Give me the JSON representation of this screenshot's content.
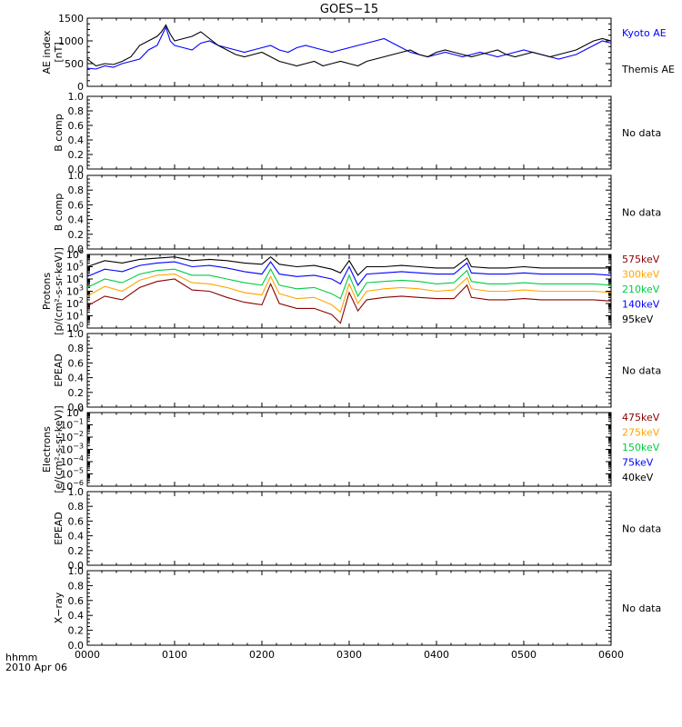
{
  "title": "GOES−15",
  "x_axis": {
    "ticks": [
      0,
      1,
      2,
      3,
      4,
      5,
      6
    ],
    "tick_labels": [
      "0000",
      "0100",
      "0200",
      "0300",
      "0400",
      "0500",
      "0600"
    ],
    "unit_label": "hhmm",
    "date_label": "2010 Apr 06"
  },
  "panels": [
    {
      "id": "ae",
      "ylabel": [
        "AE index",
        "[nT]"
      ],
      "ymax": 1500,
      "yticks": [
        0,
        500,
        1000,
        1500
      ],
      "ytick_labels": [
        "0",
        "500",
        "1000",
        "1500"
      ],
      "right_labels": [
        {
          "text": "Kyoto AE",
          "color": "#0000ff"
        },
        {
          "text": "Themis AE",
          "color": "#000000"
        }
      ]
    },
    {
      "id": "bcomp1",
      "ylabel": [
        "B comp"
      ],
      "ymax": 1.0,
      "yticks": [
        0,
        0.2,
        0.4,
        0.6,
        0.8,
        1.0
      ],
      "ytick_labels": [
        "0.0",
        "0.2",
        "0.4",
        "0.6",
        "0.8",
        "1.0"
      ],
      "right_labels": [
        {
          "text": "No data",
          "color": "#000000"
        }
      ]
    },
    {
      "id": "bcomp2",
      "ylabel": [
        "B comp"
      ],
      "ymax": 1.0,
      "yticks": [
        0,
        0.2,
        0.4,
        0.6,
        0.8,
        1.0
      ],
      "ytick_labels": [
        "0.0",
        "0.2",
        "0.4",
        "0.6",
        "0.8",
        "1.0"
      ],
      "right_labels": [
        {
          "text": "No data",
          "color": "#000000"
        }
      ]
    },
    {
      "id": "protons",
      "ylabel": [
        "Protons",
        "[p/(cm²-s-sr-keV)]"
      ],
      "log": true,
      "yrange_exp": [
        0,
        6
      ],
      "ytick_exps": [
        0,
        1,
        2,
        3,
        4,
        5,
        6
      ],
      "right_labels": [
        {
          "text": "575keV",
          "color": "#8b0000"
        },
        {
          "text": "300keV",
          "color": "#ffa500"
        },
        {
          "text": "210keV",
          "color": "#00cc44"
        },
        {
          "text": "140keV",
          "color": "#0000ff"
        },
        {
          "text": "95keV",
          "color": "#000000"
        }
      ]
    },
    {
      "id": "epead1",
      "ylabel": [
        "EPEAD"
      ],
      "ymax": 1.0,
      "yticks": [
        0,
        0.2,
        0.4,
        0.6,
        0.8,
        1.0
      ],
      "ytick_labels": [
        "0.0",
        "0.2",
        "0.4",
        "0.6",
        "0.8",
        "1.0"
      ],
      "right_labels": [
        {
          "text": "No data",
          "color": "#000000"
        }
      ]
    },
    {
      "id": "electrons",
      "ylabel": [
        "Electrons",
        "[e/(cm²-s-sr-keV)]"
      ],
      "log": true,
      "yrange_exp": [
        -6,
        0
      ],
      "ytick_exps": [
        -6,
        -5,
        -4,
        -3,
        -2,
        -1,
        0
      ],
      "right_labels": [
        {
          "text": "475keV",
          "color": "#8b0000"
        },
        {
          "text": "275keV",
          "color": "#ffa500"
        },
        {
          "text": "150keV",
          "color": "#00cc44"
        },
        {
          "text": "75keV",
          "color": "#0000ff"
        },
        {
          "text": "40keV",
          "color": "#000000"
        }
      ]
    },
    {
      "id": "epead2",
      "ylabel": [
        "EPEAD"
      ],
      "ymax": 1.0,
      "yticks": [
        0,
        0.2,
        0.4,
        0.6,
        0.8,
        1.0
      ],
      "ytick_labels": [
        "0.0",
        "0.2",
        "0.4",
        "0.6",
        "0.8",
        "1.0"
      ],
      "right_labels": [
        {
          "text": "No data",
          "color": "#000000"
        }
      ]
    },
    {
      "id": "xray",
      "ylabel": [
        "X−ray"
      ],
      "ymax": 1.0,
      "yticks": [
        0,
        0.2,
        0.4,
        0.6,
        0.8,
        1.0
      ],
      "ytick_labels": [
        "0.0",
        "0.2",
        "0.4",
        "0.6",
        "0.8",
        "1.0"
      ],
      "right_labels": [
        {
          "text": "No data",
          "color": "#000000"
        }
      ]
    }
  ],
  "chart_data": {
    "type": "line",
    "title": "GOES−15",
    "x_unit": "hours after 2010 Apr 06 00:00 UT",
    "ae_series": [
      {
        "name": "Kyoto AE",
        "color": "#0000ff",
        "x": [
          0,
          0.1,
          0.2,
          0.3,
          0.4,
          0.5,
          0.6,
          0.7,
          0.8,
          0.85,
          0.9,
          0.95,
          1.0,
          1.1,
          1.2,
          1.3,
          1.4,
          1.5,
          1.6,
          1.7,
          1.8,
          1.9,
          2.0,
          2.1,
          2.2,
          2.3,
          2.4,
          2.5,
          2.6,
          2.7,
          2.8,
          2.9,
          3.0,
          3.1,
          3.2,
          3.3,
          3.4,
          3.5,
          3.6,
          3.7,
          3.8,
          3.9,
          4.0,
          4.1,
          4.2,
          4.3,
          4.4,
          4.5,
          4.6,
          4.7,
          4.8,
          4.9,
          5.0,
          5.1,
          5.2,
          5.3,
          5.4,
          5.5,
          5.6,
          5.7,
          5.8,
          5.9,
          6.0
        ],
        "y": [
          400,
          380,
          450,
          420,
          500,
          550,
          600,
          800,
          900,
          1100,
          1300,
          1000,
          900,
          850,
          800,
          950,
          1000,
          900,
          850,
          800,
          750,
          800,
          850,
          900,
          800,
          750,
          850,
          900,
          850,
          800,
          750,
          800,
          850,
          900,
          950,
          1000,
          1050,
          950,
          850,
          750,
          700,
          650,
          700,
          750,
          700,
          650,
          700,
          750,
          700,
          650,
          700,
          750,
          800,
          750,
          700,
          650,
          600,
          650,
          700,
          800,
          900,
          1000,
          950
        ]
      },
      {
        "name": "Themis AE",
        "color": "#000000",
        "x": [
          0,
          0.1,
          0.2,
          0.3,
          0.4,
          0.5,
          0.6,
          0.7,
          0.8,
          0.85,
          0.9,
          0.95,
          1.0,
          1.1,
          1.2,
          1.3,
          1.4,
          1.5,
          1.6,
          1.7,
          1.8,
          1.9,
          2.0,
          2.1,
          2.2,
          2.3,
          2.4,
          2.5,
          2.6,
          2.7,
          2.8,
          2.9,
          3.0,
          3.1,
          3.2,
          3.3,
          3.4,
          3.5,
          3.6,
          3.7,
          3.8,
          3.9,
          4.0,
          4.1,
          4.2,
          4.3,
          4.4,
          4.5,
          4.6,
          4.7,
          4.8,
          4.9,
          5.0,
          5.1,
          5.2,
          5.3,
          5.4,
          5.5,
          5.6,
          5.7,
          5.8,
          5.9,
          6.0
        ],
        "y": [
          600,
          450,
          500,
          480,
          550,
          650,
          900,
          1000,
          1100,
          1200,
          1350,
          1150,
          1000,
          1050,
          1100,
          1200,
          1050,
          900,
          800,
          700,
          650,
          700,
          750,
          650,
          550,
          500,
          450,
          500,
          550,
          450,
          500,
          550,
          500,
          450,
          550,
          600,
          650,
          700,
          750,
          800,
          700,
          650,
          750,
          800,
          750,
          700,
          650,
          700,
          750,
          800,
          700,
          650,
          700,
          750,
          700,
          650,
          700,
          750,
          800,
          900,
          1000,
          1050,
          1000
        ]
      }
    ],
    "proton_series": [
      {
        "name": "95keV",
        "color": "#000000",
        "x": [
          0,
          0.2,
          0.4,
          0.6,
          0.8,
          1.0,
          1.2,
          1.4,
          1.6,
          1.8,
          2.0,
          2.1,
          2.2,
          2.4,
          2.6,
          2.8,
          2.9,
          3.0,
          3.1,
          3.2,
          3.4,
          3.6,
          3.8,
          4.0,
          4.2,
          4.35,
          4.4,
          4.6,
          4.8,
          5.0,
          5.2,
          5.4,
          5.6,
          5.8,
          6.0
        ],
        "y_log10": [
          5.0,
          5.5,
          5.3,
          5.6,
          5.7,
          5.8,
          5.5,
          5.6,
          5.5,
          5.3,
          5.2,
          5.8,
          5.2,
          5.0,
          5.1,
          4.8,
          4.5,
          5.5,
          4.3,
          5.0,
          5.0,
          5.1,
          5.0,
          4.9,
          4.9,
          5.7,
          5.0,
          4.9,
          4.9,
          5.0,
          4.9,
          4.9,
          4.9,
          4.9,
          4.9
        ]
      },
      {
        "name": "140keV",
        "color": "#0000ff",
        "x": [
          0,
          0.2,
          0.4,
          0.6,
          0.8,
          1.0,
          1.2,
          1.4,
          1.6,
          1.8,
          2.0,
          2.1,
          2.2,
          2.4,
          2.6,
          2.8,
          2.9,
          3.0,
          3.1,
          3.2,
          3.4,
          3.6,
          3.8,
          4.0,
          4.2,
          4.35,
          4.4,
          4.6,
          4.8,
          5.0,
          5.2,
          5.4,
          5.6,
          5.8,
          6.0
        ],
        "y_log10": [
          4.2,
          4.8,
          4.6,
          5.1,
          5.3,
          5.4,
          5.0,
          5.1,
          4.9,
          4.6,
          4.4,
          5.4,
          4.4,
          4.2,
          4.3,
          4.0,
          3.6,
          5.0,
          3.5,
          4.4,
          4.5,
          4.6,
          4.5,
          4.4,
          4.4,
          5.3,
          4.5,
          4.4,
          4.4,
          4.5,
          4.4,
          4.4,
          4.4,
          4.4,
          4.3
        ]
      },
      {
        "name": "210keV",
        "color": "#00cc44",
        "x": [
          0,
          0.2,
          0.4,
          0.6,
          0.8,
          1.0,
          1.2,
          1.4,
          1.6,
          1.8,
          2.0,
          2.1,
          2.2,
          2.4,
          2.6,
          2.8,
          2.9,
          3.0,
          3.1,
          3.2,
          3.4,
          3.6,
          3.8,
          4.0,
          4.2,
          4.35,
          4.4,
          4.6,
          4.8,
          5.0,
          5.2,
          5.4,
          5.6,
          5.8,
          6.0
        ],
        "y_log10": [
          3.3,
          4.0,
          3.7,
          4.4,
          4.7,
          4.8,
          4.3,
          4.3,
          4.0,
          3.7,
          3.5,
          4.8,
          3.5,
          3.2,
          3.3,
          2.8,
          2.4,
          4.3,
          2.6,
          3.7,
          3.8,
          3.9,
          3.8,
          3.6,
          3.7,
          4.7,
          3.8,
          3.6,
          3.6,
          3.7,
          3.6,
          3.6,
          3.6,
          3.6,
          3.5
        ]
      },
      {
        "name": "300keV",
        "color": "#ffa500",
        "x": [
          0,
          0.2,
          0.4,
          0.6,
          0.8,
          1.0,
          1.2,
          1.4,
          1.6,
          1.8,
          2.0,
          2.1,
          2.2,
          2.4,
          2.6,
          2.8,
          2.9,
          3.0,
          3.1,
          3.2,
          3.4,
          3.6,
          3.8,
          4.0,
          4.2,
          4.35,
          4.4,
          4.6,
          4.8,
          5.0,
          5.2,
          5.4,
          5.6,
          5.8,
          6.0
        ],
        "y_log10": [
          2.6,
          3.4,
          3.0,
          3.9,
          4.3,
          4.4,
          3.7,
          3.6,
          3.3,
          2.9,
          2.7,
          4.2,
          2.8,
          2.4,
          2.5,
          1.9,
          1.3,
          3.6,
          2.0,
          3.0,
          3.2,
          3.3,
          3.2,
          3.0,
          3.1,
          4.1,
          3.2,
          3.0,
          3.0,
          3.1,
          3.0,
          3.0,
          3.0,
          3.0,
          2.9
        ]
      },
      {
        "name": "575keV",
        "color": "#8b0000",
        "x": [
          0,
          0.2,
          0.4,
          0.6,
          0.8,
          1.0,
          1.2,
          1.4,
          1.6,
          1.8,
          2.0,
          2.1,
          2.2,
          2.4,
          2.6,
          2.8,
          2.9,
          3.0,
          3.1,
          3.2,
          3.4,
          3.6,
          3.8,
          4.0,
          4.2,
          4.35,
          4.4,
          4.6,
          4.8,
          5.0,
          5.2,
          5.4,
          5.6,
          5.8,
          6.0
        ],
        "y_log10": [
          1.8,
          2.6,
          2.3,
          3.3,
          3.8,
          4.0,
          3.1,
          3.0,
          2.5,
          2.1,
          1.9,
          3.6,
          2.0,
          1.6,
          1.6,
          1.1,
          0.4,
          2.9,
          1.4,
          2.3,
          2.5,
          2.6,
          2.5,
          2.4,
          2.4,
          3.5,
          2.5,
          2.3,
          2.3,
          2.4,
          2.3,
          2.3,
          2.3,
          2.3,
          2.2
        ]
      }
    ]
  }
}
